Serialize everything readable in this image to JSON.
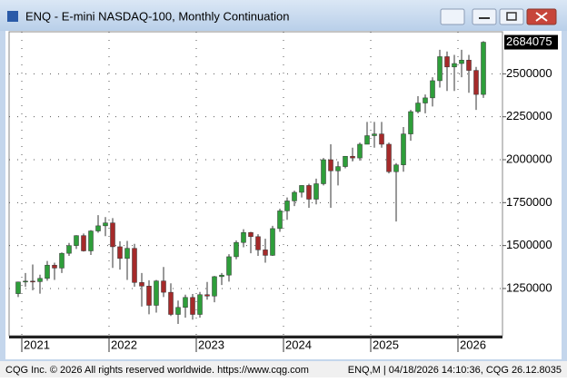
{
  "window_title": "ENQ - E-mini NASDAQ-100, Monthly Continuation",
  "footer_left": "CQG Inc. © 2026 All rights reserved worldwide. https://www.cqg.com",
  "footer_right": "ENQ,M | 04/18/2026 14:10:36, CQG 26.12.8035",
  "chart_data": {
    "type": "candlestick",
    "categories": [
      null,
      "2021",
      null,
      null,
      null,
      null,
      null,
      null,
      null,
      null,
      null,
      null,
      null,
      "2022",
      null,
      null,
      null,
      null,
      null,
      null,
      null,
      null,
      null,
      null,
      null,
      "2023",
      null,
      null,
      null,
      null,
      null,
      null,
      null,
      null,
      null,
      null,
      null,
      "2024",
      null,
      null,
      null,
      null,
      null,
      null,
      null,
      null,
      null,
      null,
      null,
      "2025",
      null,
      null,
      null,
      null,
      null,
      null,
      null,
      null,
      null,
      null,
      null,
      "2026",
      null,
      null,
      null
    ],
    "open": [
      1220000,
      1288000,
      1293000,
      1290000,
      1309000,
      1386000,
      1369000,
      1455000,
      1500000,
      1558000,
      1469000,
      1585000,
      1615000,
      1632000,
      1493000,
      1425000,
      1484000,
      1285000,
      1264000,
      1152000,
      1294000,
      1228000,
      1099000,
      1140000,
      1198000,
      1099000,
      1214000,
      1206000,
      1319000,
      1328000,
      1435000,
      1518000,
      1576000,
      1552000,
      1475000,
      1443000,
      1599000,
      1702000,
      1760000,
      1810000,
      1850000,
      1770000,
      1860000,
      2000000,
      1935000,
      1960000,
      2020000,
      2010000,
      2090000,
      2140000,
      2150000,
      2090000,
      1930000,
      1970000,
      2150000,
      2280000,
      2330000,
      2360000,
      2460000,
      2600000,
      2540000,
      2560000,
      2580000,
      2520000,
      2380000
    ],
    "high": [
      1290000,
      1340000,
      1390000,
      1330000,
      1410000,
      1400000,
      1460000,
      1515000,
      1560000,
      1570000,
      1590000,
      1677000,
      1666000,
      1660000,
      1525000,
      1527000,
      1510000,
      1340000,
      1298000,
      1300000,
      1375000,
      1280000,
      1180000,
      1214000,
      1218000,
      1230000,
      1288000,
      1323000,
      1340000,
      1450000,
      1530000,
      1595000,
      1580000,
      1566000,
      1540000,
      1615000,
      1715000,
      1780000,
      1820000,
      1850000,
      1860000,
      1890000,
      2010000,
      2090000,
      1990000,
      2020000,
      2070000,
      2100000,
      2220000,
      2220000,
      2220000,
      2100000,
      1980000,
      2190000,
      2290000,
      2370000,
      2380000,
      2480000,
      2640000,
      2630000,
      2610000,
      2640000,
      2610000,
      2540000,
      2690000
    ],
    "low": [
      1200000,
      1260000,
      1240000,
      1220000,
      1295000,
      1300000,
      1340000,
      1440000,
      1480000,
      1465000,
      1445000,
      1575000,
      1555000,
      1370000,
      1360000,
      1300000,
      1260000,
      1145000,
      1100000,
      1110000,
      1200000,
      1090000,
      1044000,
      1080000,
      1069000,
      1080000,
      1185000,
      1170000,
      1270000,
      1290000,
      1420000,
      1490000,
      1455000,
      1440000,
      1400000,
      1440000,
      1580000,
      1650000,
      1730000,
      1780000,
      1720000,
      1740000,
      1850000,
      1720000,
      1850000,
      1950000,
      1990000,
      1995000,
      2090000,
      2070000,
      2070000,
      1920000,
      1640000,
      1930000,
      2110000,
      2270000,
      2270000,
      2310000,
      2420000,
      2400000,
      2400000,
      2480000,
      2390000,
      2290000,
      2360000
    ],
    "close": [
      1288000,
      1293000,
      1290000,
      1309000,
      1386000,
      1369000,
      1455000,
      1500000,
      1558000,
      1469000,
      1585000,
      1615000,
      1632000,
      1493000,
      1425000,
      1484000,
      1285000,
      1264000,
      1152000,
      1294000,
      1228000,
      1099000,
      1140000,
      1198000,
      1099000,
      1214000,
      1206000,
      1319000,
      1328000,
      1435000,
      1518000,
      1576000,
      1552000,
      1475000,
      1443000,
      1599000,
      1702000,
      1760000,
      1810000,
      1850000,
      1770000,
      1860000,
      2000000,
      1935000,
      1960000,
      2020000,
      2010000,
      2090000,
      2140000,
      2150000,
      2090000,
      1930000,
      1970000,
      2150000,
      2280000,
      2330000,
      2360000,
      2460000,
      2600000,
      2540000,
      2560000,
      2580000,
      2520000,
      2380000,
      2684075
    ],
    "up_color": "#2e9e3a",
    "down_color": "#a52a2a",
    "ylim": [
      975000,
      2745000
    ],
    "yticks": [
      1250000,
      1500000,
      1750000,
      2000000,
      2250000,
      2500000
    ],
    "grid": true
  }
}
